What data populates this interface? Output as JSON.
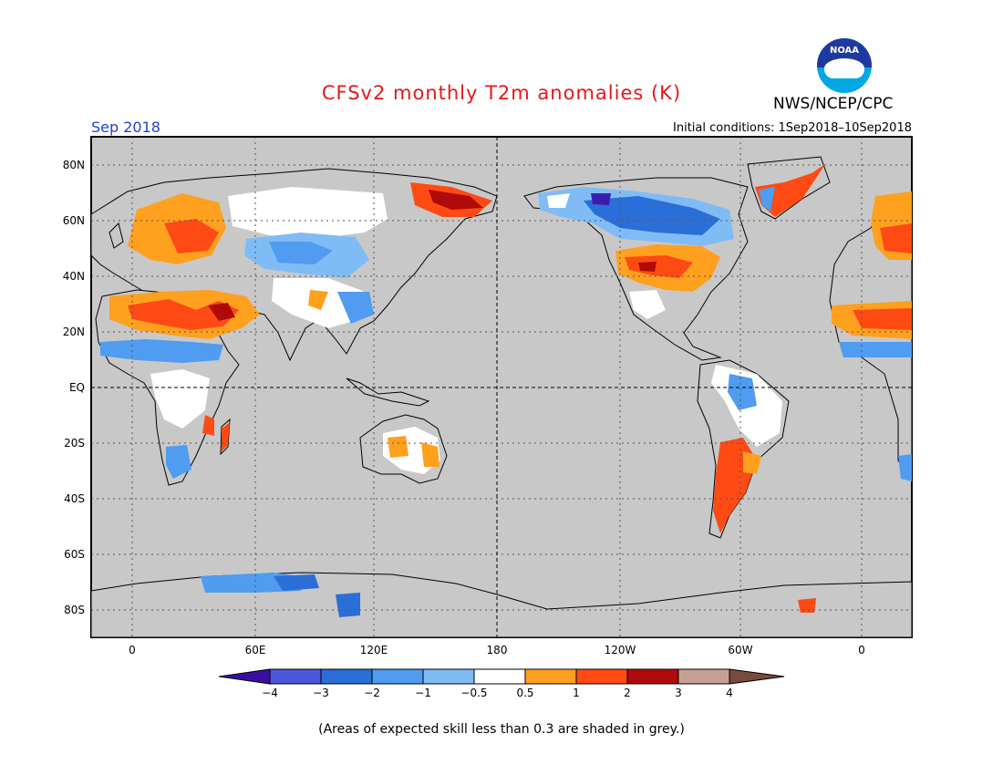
{
  "header": {
    "title": "CFSv2 monthly T2m anomalies (K)",
    "agency": "NWS/NCEP/CPC",
    "month": "Sep 2018",
    "initial": "Initial conditions: 1Sep2018–10Sep2018",
    "logo_text": "NOAA"
  },
  "map": {
    "lat_labels": [
      "80N",
      "60N",
      "40N",
      "20N",
      "EQ",
      "20S",
      "40S",
      "60S",
      "80S"
    ],
    "lon_labels": [
      "0",
      "60E",
      "120E",
      "180",
      "120W",
      "60W",
      "0"
    ],
    "ocean_color": "#c8c8c8"
  },
  "legend": {
    "labels": [
      "−4",
      "−3",
      "−2",
      "−1",
      "−0.5",
      "0.5",
      "1",
      "2",
      "3",
      "4"
    ],
    "colors": [
      "#3c1bb0",
      "#4a57d8",
      "#2a6ed8",
      "#4f9cf0",
      "#7fbcf5",
      "#ffffff",
      "#ffa01e",
      "#ff4a14",
      "#b00a0a",
      "#c7a095",
      "#7a4a3a"
    ],
    "low_end_color": "#3a0fa0",
    "high_end_color": "#7a4a3a"
  },
  "footnote": "(Areas of expected skill less than 0.3 are shaded in grey.)"
}
